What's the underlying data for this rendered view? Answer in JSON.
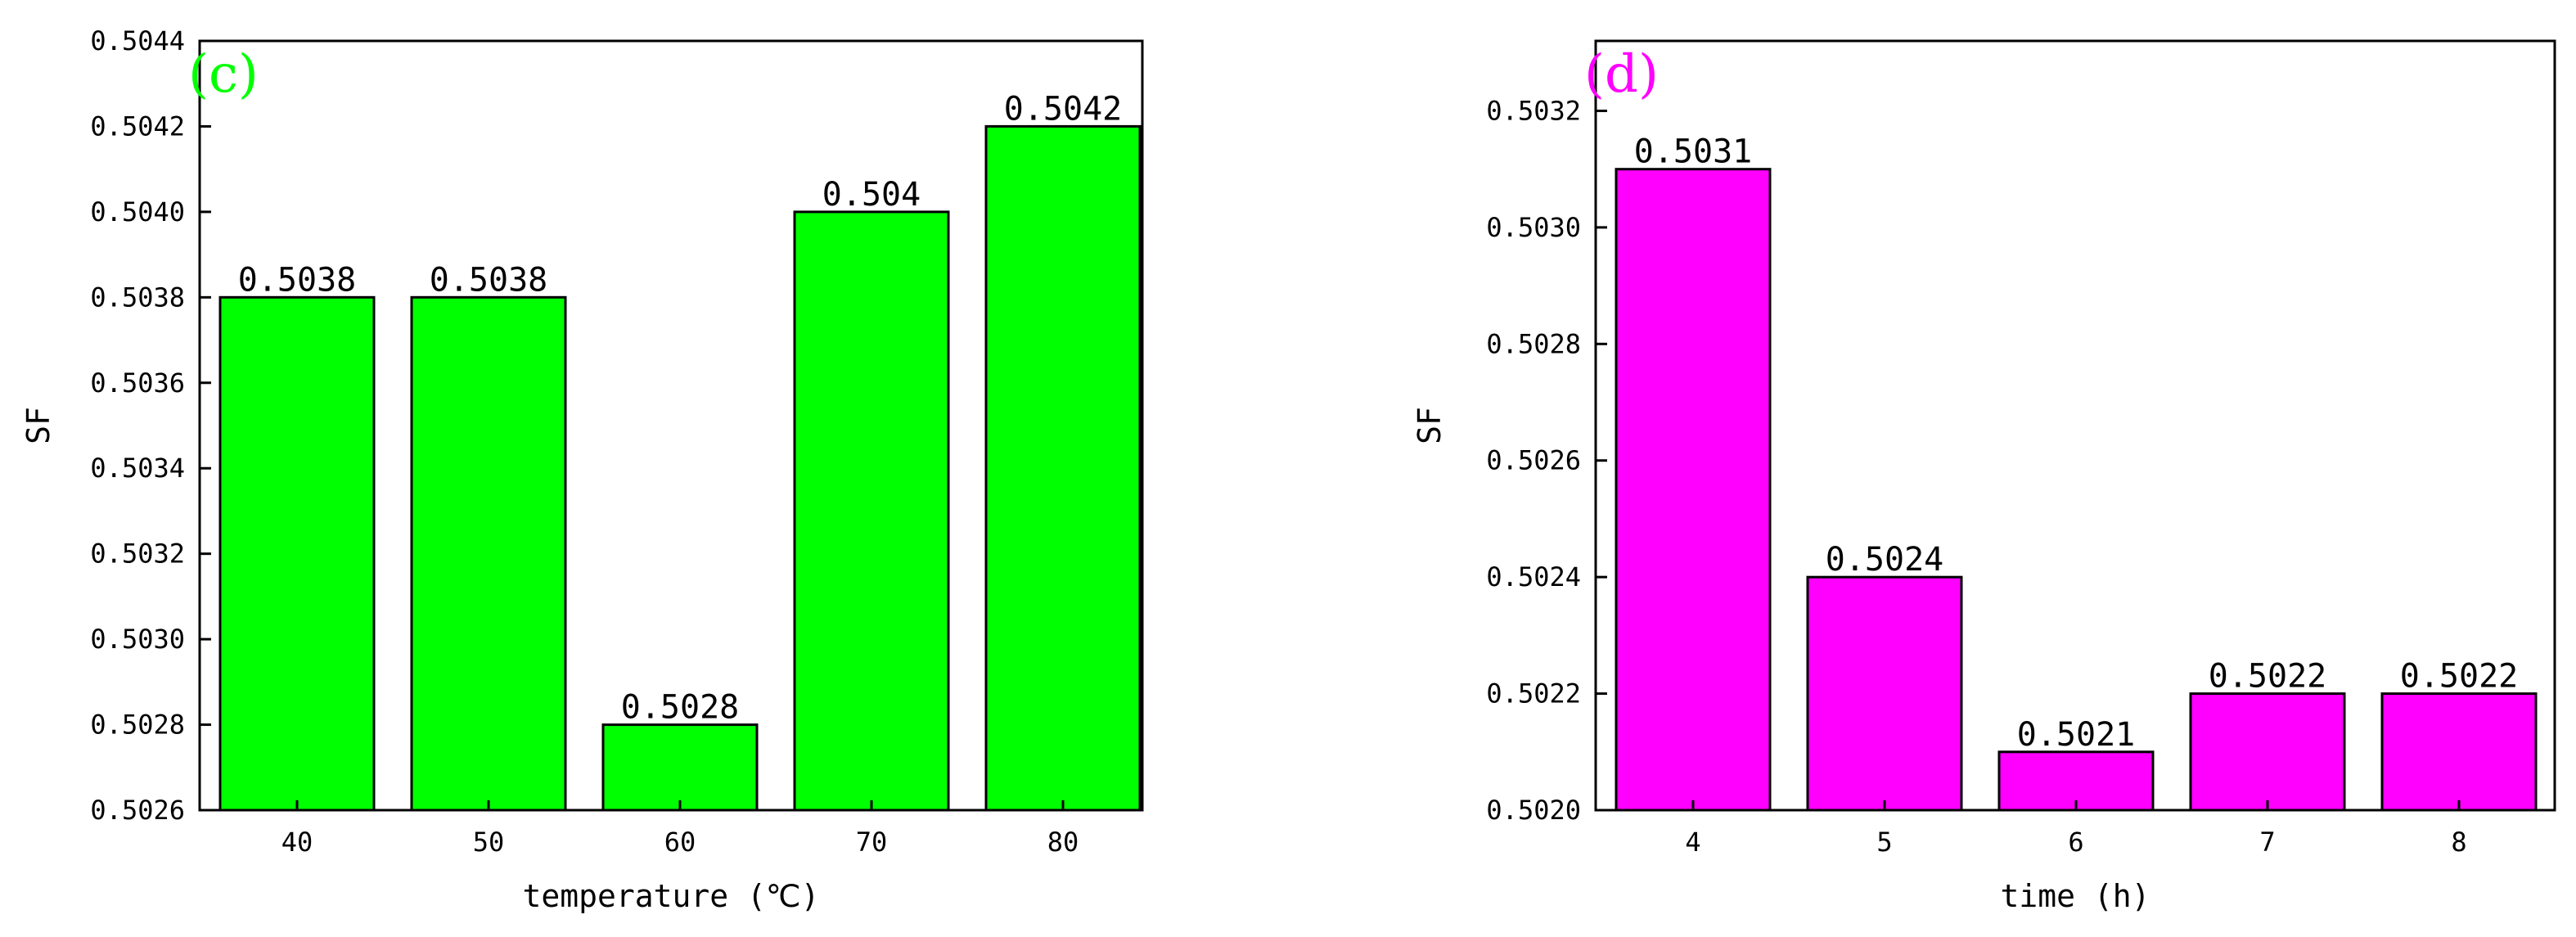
{
  "chart_data": [
    {
      "type": "bar",
      "panel_label": "(c)",
      "categories": [
        "40",
        "50",
        "60",
        "70",
        "80"
      ],
      "values": [
        0.5038,
        0.5038,
        0.5028,
        0.504,
        0.5042
      ],
      "value_labels": [
        "0.5038",
        "0.5038",
        "0.5028",
        "0.504",
        "0.5042"
      ],
      "title": "",
      "xlabel": "temperature (℃)",
      "ylabel": "SF",
      "ylim": [
        0.5026,
        0.5044
      ],
      "yticks": [
        "0.5026",
        "0.5028",
        "0.5030",
        "0.5032",
        "0.5034",
        "0.5036",
        "0.5038",
        "0.5040",
        "0.5042",
        "0.5044"
      ],
      "bar_color": "#00ff00",
      "label_color": "#00ff00",
      "grid": false
    },
    {
      "type": "bar",
      "panel_label": "(d)",
      "categories": [
        "4",
        "5",
        "6",
        "7",
        "8"
      ],
      "values": [
        0.5031,
        0.5024,
        0.5021,
        0.5022,
        0.5022
      ],
      "value_labels": [
        "0.5031",
        "0.5024",
        "0.5021",
        "0.5022",
        "0.5022"
      ],
      "title": "",
      "xlabel": "time (h)",
      "ylabel": "SF",
      "ylim": [
        0.502,
        0.50332
      ],
      "yticks": [
        "0.5020",
        "0.5022",
        "0.5024",
        "0.5026",
        "0.5028",
        "0.5030",
        "0.5032"
      ],
      "bar_color": "#ff00ff",
      "label_color": "#ff00ff",
      "grid": false
    }
  ]
}
